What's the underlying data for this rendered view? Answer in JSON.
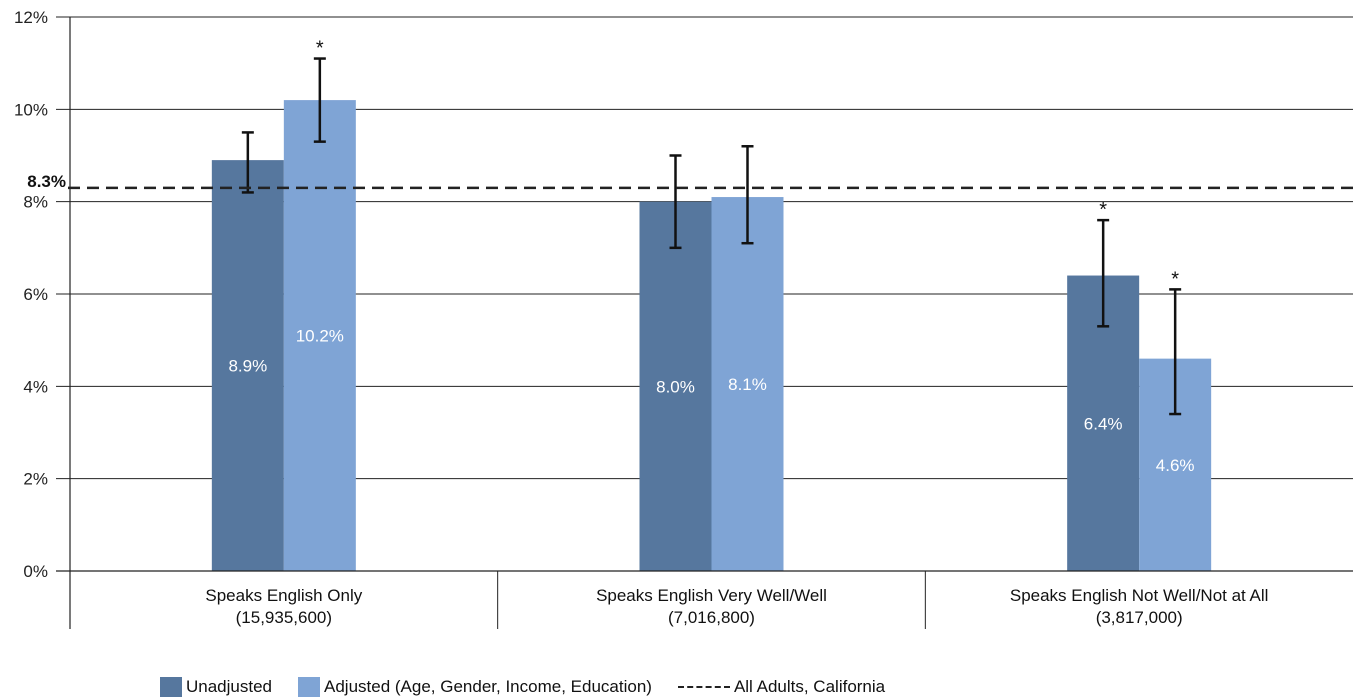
{
  "chart_data": {
    "type": "bar",
    "categories": [
      "Speaks English Only",
      "Speaks English Very Well/Well",
      "Speaks English Not Well/Not at All"
    ],
    "category_counts": [
      "(15,935,600)",
      "(7,016,800)",
      "(3,817,000)"
    ],
    "series": [
      {
        "name": "Unadjusted",
        "color": "#56779e",
        "values": [
          8.9,
          8.0,
          6.4
        ],
        "labels": [
          "8.9%",
          "8.0%",
          "6.4%"
        ],
        "err_low": [
          8.2,
          7.0,
          5.3
        ],
        "err_high": [
          9.5,
          9.0,
          7.6
        ],
        "significant": [
          false,
          false,
          true
        ]
      },
      {
        "name": "Adjusted (Age, Gender, Income, Education)",
        "color": "#7fa4d5",
        "values": [
          10.2,
          8.1,
          4.6
        ],
        "labels": [
          "10.2%",
          "8.1%",
          "4.6%"
        ],
        "err_low": [
          9.3,
          7.1,
          3.4
        ],
        "err_high": [
          11.1,
          9.2,
          6.1
        ],
        "significant": [
          true,
          false,
          true
        ]
      }
    ],
    "reference_line": {
      "label": "All Adults, California",
      "value": 8.3,
      "display": "8.3%"
    },
    "ylim": [
      0,
      12
    ],
    "yticks": [
      0,
      2,
      4,
      6,
      8,
      10,
      12
    ],
    "ytick_labels": [
      "0%",
      "2%",
      "4%",
      "6%",
      "8%",
      "10%",
      "12%"
    ],
    "significance_marker": "*",
    "grid": true,
    "legend_position": "bottom"
  }
}
